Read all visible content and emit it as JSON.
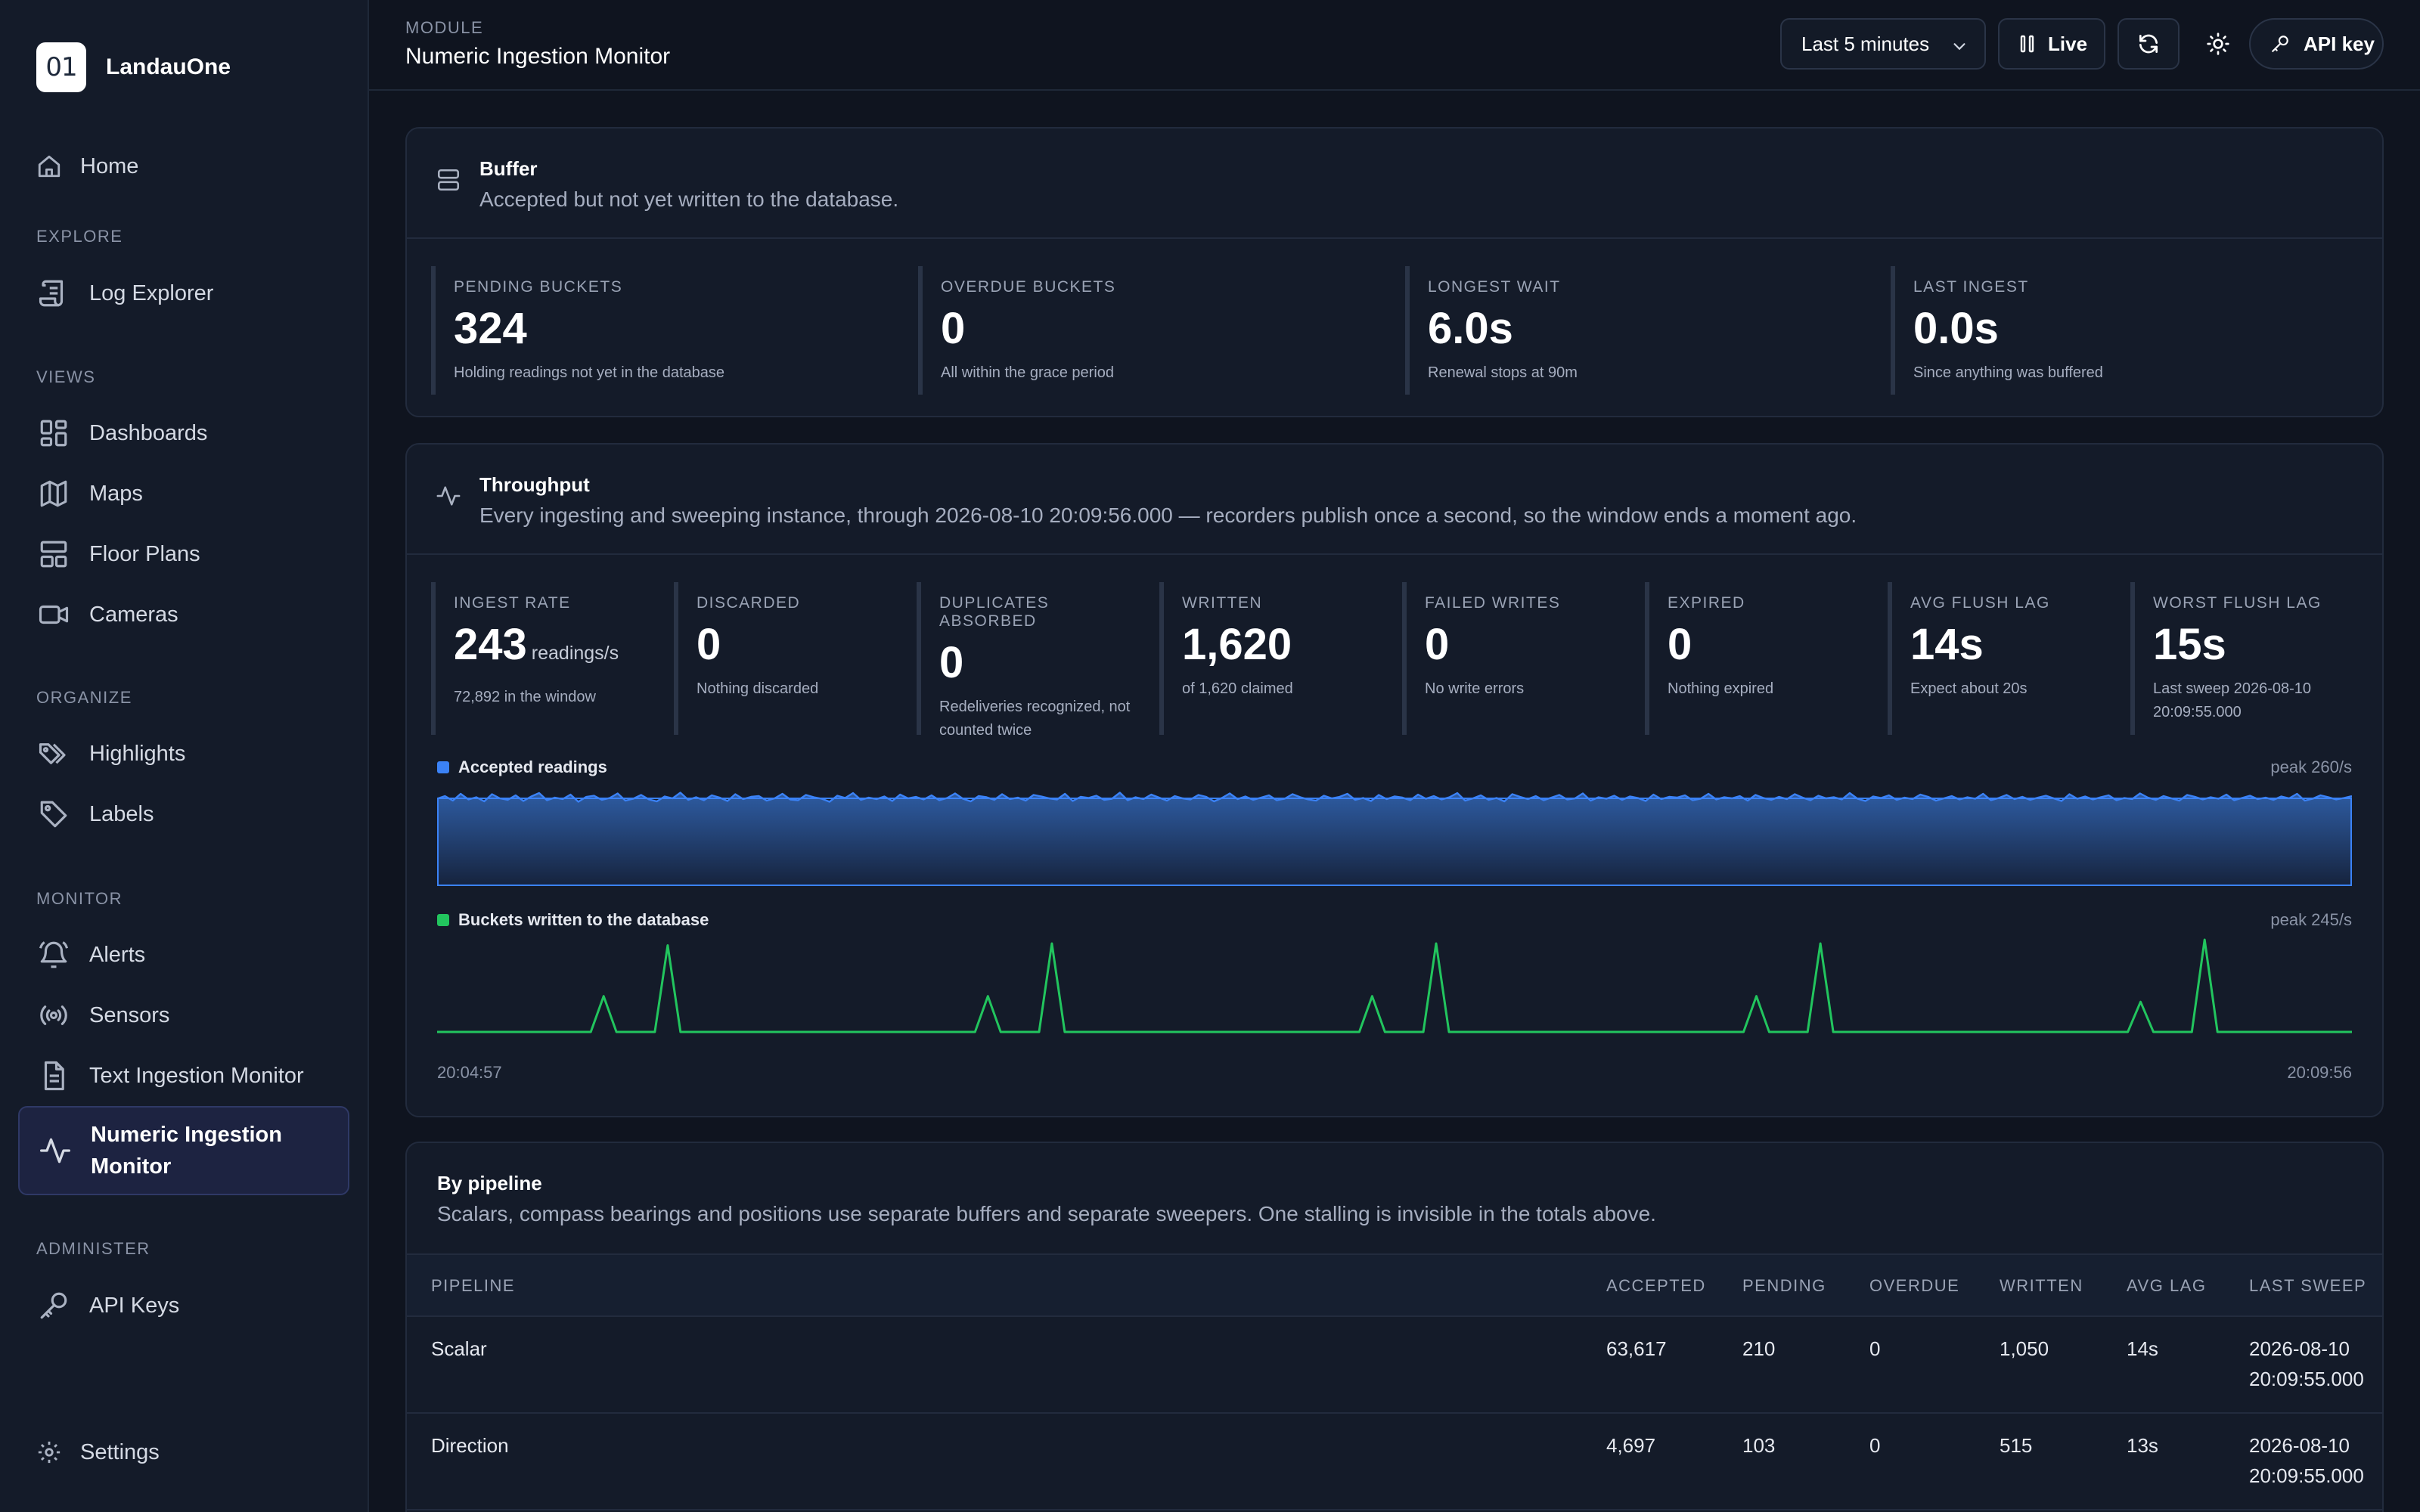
{
  "app": {
    "name": "LandauOne",
    "logo_text": "01"
  },
  "sidebar": {
    "home": "Home",
    "sections": {
      "explore": "EXPLORE",
      "views": "VIEWS",
      "organize": "ORGANIZE",
      "monitor": "MONITOR",
      "administer": "ADMINISTER"
    },
    "items": {
      "log_explorer": "Log Explorer",
      "dashboards": "Dashboards",
      "maps": "Maps",
      "floor_plans": "Floor Plans",
      "cameras": "Cameras",
      "highlights": "Highlights",
      "labels": "Labels",
      "alerts": "Alerts",
      "sensors": "Sensors",
      "text_ingestion": "Text Ingestion Monitor",
      "numeric_ingestion_1": "Numeric Ingestion",
      "numeric_ingestion_2": "Monitor",
      "api_keys": "API Keys",
      "settings": "Settings"
    }
  },
  "header": {
    "module_label": "MODULE",
    "title": "Numeric Ingestion Monitor",
    "time_range": "Last 5 minutes",
    "live_label": "Live",
    "api_key_label": "API key"
  },
  "buffer": {
    "title": "Buffer",
    "subtitle": "Accepted but not yet written to the database.",
    "stats": [
      {
        "label": "PENDING BUCKETS",
        "value": "324",
        "note": "Holding readings not yet in the database"
      },
      {
        "label": "OVERDUE BUCKETS",
        "value": "0",
        "note": "All within the grace period"
      },
      {
        "label": "LONGEST WAIT",
        "value": "6.0s",
        "note": "Renewal stops at 90m"
      },
      {
        "label": "LAST INGEST",
        "value": "0.0s",
        "note": "Since anything was buffered"
      }
    ]
  },
  "throughput": {
    "title": "Throughput",
    "subtitle": "Every ingesting and sweeping instance, through 2026-08-10 20:09:56.000 — recorders publish once a second, so the window ends a moment ago.",
    "stats": [
      {
        "label": "INGEST RATE",
        "value": "243",
        "unit": "readings/s",
        "note1": "72,892 in the window",
        "note2": ""
      },
      {
        "label": "DISCARDED",
        "value": "0",
        "unit": "",
        "note1": "Nothing discarded",
        "note2": ""
      },
      {
        "label": "DUPLICATES ABSORBED",
        "value": "0",
        "unit": "",
        "note1": "Redeliveries recognized, not",
        "note2": "counted twice"
      },
      {
        "label": "WRITTEN",
        "value": "1,620",
        "unit": "",
        "note1": "of 1,620 claimed",
        "note2": ""
      },
      {
        "label": "FAILED WRITES",
        "value": "0",
        "unit": "",
        "note1": "No write errors",
        "note2": ""
      },
      {
        "label": "EXPIRED",
        "value": "0",
        "unit": "",
        "note1": "Nothing expired",
        "note2": ""
      },
      {
        "label": "AVG FLUSH LAG",
        "value": "14s",
        "unit": "",
        "note1": "Expect about 20s",
        "note2": ""
      },
      {
        "label": "WORST FLUSH LAG",
        "value": "15s",
        "unit": "",
        "note1": "Last sweep 2026-08-10",
        "note2": "20:09:55.000"
      }
    ]
  },
  "chart_data": [
    {
      "type": "area",
      "title": "Accepted readings",
      "peak_label": "peak 260/s",
      "x_start": "20:04:57",
      "x_end": "20:09:56",
      "ylim": [
        0,
        260
      ],
      "color": "#3b82f6",
      "series": [
        {
          "name": "Accepted readings",
          "values": [
            243,
            250,
            238,
            256,
            241,
            247,
            236,
            255,
            244,
            240,
            252,
            237,
            249,
            258,
            239,
            246,
            242,
            254,
            235,
            248,
            251,
            240,
            245,
            257,
            238,
            243,
            253,
            241,
            236,
            249,
            244,
            259,
            240,
            247,
            239,
            252,
            246,
            237,
            255,
            242,
            248,
            250,
            238,
            244,
            256,
            241,
            239,
            253,
            247,
            243,
            235,
            251,
            245,
            258,
            240,
            246,
            242,
            249,
            237,
            254,
            244,
            248,
            241,
            252,
            239,
            245,
            257,
            243,
            236,
            250,
            247,
            240,
            255,
            242,
            246,
            238,
            253,
            249,
            244,
            241,
            256,
            237,
            248,
            245,
            251,
            240,
            243,
            259,
            239,
            247,
            242,
            254,
            246,
            238,
            250,
            244,
            241,
            253,
            248,
            236,
            245,
            257,
            242,
            249,
            240,
            246,
            252,
            239,
            243,
            255,
            247,
            241,
            238,
            251,
            244,
            248,
            256,
            240,
            245,
            237,
            253,
            242,
            249,
            246,
            239,
            254,
            243,
            250,
            241,
            247,
            258,
            238,
            244,
            252,
            240,
            245,
            236,
            255,
            248,
            242,
            250,
            239,
            246,
            253,
            241,
            244,
            257,
            238,
            247,
            243,
            251,
            240,
            249,
            245,
            237,
            254,
            242,
            248,
            246,
            252,
            239,
            243,
            256,
            241,
            247,
            244,
            250,
            238,
            253,
            245,
            240,
            248,
            242,
            255,
            246,
            239,
            251,
            244,
            247,
            241,
            258,
            243,
            237,
            249,
            245,
            252,
            240,
            246,
            242,
            254,
            248,
            238,
            244,
            250,
            241,
            247,
            243,
            256,
            239,
            245,
            253,
            242,
            248,
            240,
            246,
            251,
            244,
            237,
            255,
            243,
            249,
            241,
            247,
            252,
            239,
            245,
            242,
            257,
            246,
            240,
            250,
            244,
            238,
            253,
            248,
            241,
            247,
            243,
            254,
            239,
            245,
            251,
            242,
            246,
            240,
            249,
            244,
            256,
            238,
            243,
            252,
            247,
            241,
            245,
            250
          ]
        }
      ]
    },
    {
      "type": "line",
      "title": "Buckets written to the database",
      "peak_label": "peak 245/s",
      "x_start": "20:04:57",
      "x_end": "20:09:56",
      "ylim": [
        0,
        245
      ],
      "color": "#22c55e",
      "series": [
        {
          "name": "Buckets written to the database",
          "x": [
            0,
            24,
            26,
            28,
            34,
            36,
            38,
            60,
            84,
            86,
            88,
            94,
            96,
            98,
            120,
            144,
            146,
            148,
            154,
            156,
            158,
            180,
            204,
            206,
            208,
            214,
            216,
            218,
            240,
            264,
            266,
            268,
            274,
            276,
            278,
            299
          ],
          "values": [
            0,
            0,
            95,
            0,
            0,
            230,
            0,
            0,
            0,
            95,
            0,
            0,
            235,
            0,
            0,
            0,
            95,
            0,
            0,
            235,
            0,
            0,
            0,
            95,
            0,
            0,
            235,
            0,
            0,
            0,
            80,
            0,
            0,
            245,
            0,
            0
          ]
        }
      ]
    }
  ],
  "pipeline": {
    "title": "By pipeline",
    "subtitle": "Scalars, compass bearings and positions use separate buffers and separate sweepers. One stalling is invisible in the totals above.",
    "columns": [
      "PIPELINE",
      "ACCEPTED",
      "PENDING",
      "OVERDUE",
      "WRITTEN",
      "AVG LAG",
      "LAST SWEEP"
    ],
    "rows": [
      {
        "pipeline": "Scalar",
        "accepted": "63,617",
        "pending": "210",
        "overdue": "0",
        "written": "1,050",
        "avg_lag": "14s",
        "last_sweep_date": "2026-08-10",
        "last_sweep_time": "20:09:55.000"
      },
      {
        "pipeline": "Direction",
        "accepted": "4,697",
        "pending": "103",
        "overdue": "0",
        "written": "515",
        "avg_lag": "13s",
        "last_sweep_date": "2026-08-10",
        "last_sweep_time": "20:09:55.000"
      }
    ]
  }
}
